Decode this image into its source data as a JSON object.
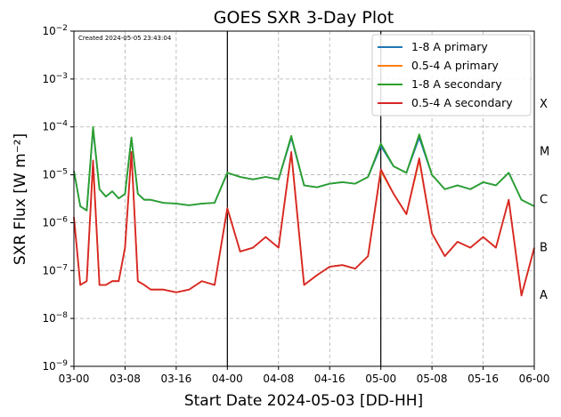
{
  "chart_data": {
    "type": "line",
    "title": "GOES SXR 3-Day Plot",
    "created_note": "Created 2024-05-05 23:43:04",
    "xlabel": "Start Date 2024-05-03 [DD-HH]",
    "ylabel": "SXR Flux [W m⁻²]",
    "x_unit": "hours since 2024-05-03 00:00",
    "xlim": [
      0,
      72
    ],
    "x_ticks": [
      {
        "x": 0,
        "label": "03-00"
      },
      {
        "x": 8,
        "label": "03-08"
      },
      {
        "x": 16,
        "label": "03-16"
      },
      {
        "x": 24,
        "label": "04-00"
      },
      {
        "x": 32,
        "label": "04-08"
      },
      {
        "x": 40,
        "label": "04-16"
      },
      {
        "x": 48,
        "label": "05-00"
      },
      {
        "x": 56,
        "label": "05-08"
      },
      {
        "x": 64,
        "label": "05-16"
      },
      {
        "x": 72,
        "label": "06-00"
      }
    ],
    "y_scale": "log",
    "ylim": [
      1e-09,
      0.01
    ],
    "y_ticks": [
      {
        "exp": -9,
        "label": "10−9"
      },
      {
        "exp": -8,
        "label": "10−8"
      },
      {
        "exp": -7,
        "label": "10−7"
      },
      {
        "exp": -6,
        "label": "10−6"
      },
      {
        "exp": -5,
        "label": "10−5"
      },
      {
        "exp": -4,
        "label": "10−4"
      },
      {
        "exp": -3,
        "label": "10−3"
      },
      {
        "exp": -2,
        "label": "10−2"
      }
    ],
    "flare_classes": [
      {
        "label": "X",
        "log10": -3.5
      },
      {
        "label": "M",
        "log10": -4.5
      },
      {
        "label": "C",
        "log10": -5.5
      },
      {
        "label": "B",
        "log10": -6.5
      },
      {
        "label": "A",
        "log10": -7.5
      }
    ],
    "day_boundaries": [
      24,
      48
    ],
    "grid": true,
    "legend_position": "top-right",
    "series": [
      {
        "name": "1-8 A primary",
        "color": "#1f77b4",
        "x": [
          0,
          1,
          2,
          3,
          4,
          5,
          6,
          7,
          8,
          9,
          10,
          11,
          12,
          14,
          16,
          18,
          20,
          22,
          24,
          26,
          28,
          30,
          32,
          34,
          36,
          38,
          40,
          42,
          44,
          46,
          48,
          50,
          52,
          54,
          56,
          58,
          60,
          62,
          64,
          66,
          68,
          70,
          72
        ],
        "y": [
          1.2e-05,
          2.2e-06,
          1.8e-06,
          9e-05,
          5e-06,
          3.5e-06,
          4.5e-06,
          3.2e-06,
          4e-06,
          6e-05,
          4e-06,
          3e-06,
          3e-06,
          2.6e-06,
          2.5e-06,
          2.3e-06,
          2.5e-06,
          2.6e-06,
          1.1e-05,
          9e-06,
          8e-06,
          9e-06,
          8e-06,
          6e-05,
          6e-06,
          5.5e-06,
          6.5e-06,
          7e-06,
          6.5e-06,
          9e-06,
          4e-05,
          1.5e-05,
          1.1e-05,
          6e-05,
          1e-05,
          5e-06,
          6e-06,
          5e-06,
          7e-06,
          6e-06,
          1.1e-05,
          3e-06,
          2.2e-06
        ]
      },
      {
        "name": "0.5-4 A primary",
        "color": "#ff7f0e",
        "x": [
          0,
          1,
          2,
          3,
          4,
          5,
          6,
          7,
          8,
          9,
          10,
          11,
          12,
          14,
          16,
          18,
          20,
          22,
          24,
          26,
          28,
          30,
          32,
          34,
          36,
          38,
          40,
          42,
          44,
          46,
          48,
          50,
          52,
          54,
          56,
          58,
          60,
          62,
          64,
          66,
          68,
          70,
          72
        ],
        "y": [
          1.3e-06,
          5e-08,
          6e-08,
          1.7e-05,
          5e-08,
          5e-08,
          6e-08,
          6e-08,
          3e-07,
          3e-05,
          6e-08,
          5e-08,
          4e-08,
          4e-08,
          3.5e-08,
          4e-08,
          6e-08,
          5e-08,
          2e-06,
          2.5e-07,
          3e-07,
          5e-07,
          3e-07,
          2.8e-05,
          5e-08,
          8e-08,
          1.2e-07,
          1.3e-07,
          1.1e-07,
          2e-07,
          1.2e-05,
          4e-06,
          1.5e-06,
          2e-05,
          6e-07,
          2e-07,
          4e-07,
          3e-07,
          5e-07,
          3e-07,
          3e-06,
          3e-08,
          3e-07
        ]
      },
      {
        "name": "1-8 A secondary",
        "color": "#2ca02c",
        "x": [
          0,
          1,
          2,
          3,
          4,
          5,
          6,
          7,
          8,
          9,
          10,
          11,
          12,
          14,
          16,
          18,
          20,
          22,
          24,
          26,
          28,
          30,
          32,
          34,
          36,
          38,
          40,
          42,
          44,
          46,
          48,
          50,
          52,
          54,
          56,
          58,
          60,
          62,
          64,
          66,
          68,
          70,
          72
        ],
        "y": [
          1.2e-05,
          2.2e-06,
          1.8e-06,
          0.0001,
          5e-06,
          3.5e-06,
          4.5e-06,
          3.2e-06,
          4e-06,
          6e-05,
          4e-06,
          3e-06,
          3e-06,
          2.6e-06,
          2.5e-06,
          2.3e-06,
          2.5e-06,
          2.6e-06,
          1.1e-05,
          9e-06,
          8e-06,
          9e-06,
          8e-06,
          6.5e-05,
          6e-06,
          5.5e-06,
          6.5e-06,
          7e-06,
          6.5e-06,
          9e-06,
          4.5e-05,
          1.5e-05,
          1.1e-05,
          7e-05,
          1e-05,
          5e-06,
          6e-06,
          5e-06,
          7e-06,
          6e-06,
          1.1e-05,
          3e-06,
          2.2e-06
        ]
      },
      {
        "name": "0.5-4 A secondary",
        "color": "#d62728",
        "x": [
          0,
          1,
          2,
          3,
          4,
          5,
          6,
          7,
          8,
          9,
          10,
          11,
          12,
          14,
          16,
          18,
          20,
          22,
          24,
          26,
          28,
          30,
          32,
          34,
          36,
          38,
          40,
          42,
          44,
          46,
          48,
          50,
          52,
          54,
          56,
          58,
          60,
          62,
          64,
          66,
          68,
          70,
          72
        ],
        "y": [
          1.3e-06,
          5e-08,
          6e-08,
          2e-05,
          5e-08,
          5e-08,
          6e-08,
          6e-08,
          3e-07,
          3e-05,
          6e-08,
          5e-08,
          4e-08,
          4e-08,
          3.5e-08,
          4e-08,
          6e-08,
          5e-08,
          2e-06,
          2.5e-07,
          3e-07,
          5e-07,
          3e-07,
          3e-05,
          5e-08,
          8e-08,
          1.2e-07,
          1.3e-07,
          1.1e-07,
          2e-07,
          1.3e-05,
          4e-06,
          1.5e-06,
          2.2e-05,
          6e-07,
          2e-07,
          4e-07,
          3e-07,
          5e-07,
          3e-07,
          3e-06,
          3e-08,
          3e-07
        ]
      }
    ]
  }
}
